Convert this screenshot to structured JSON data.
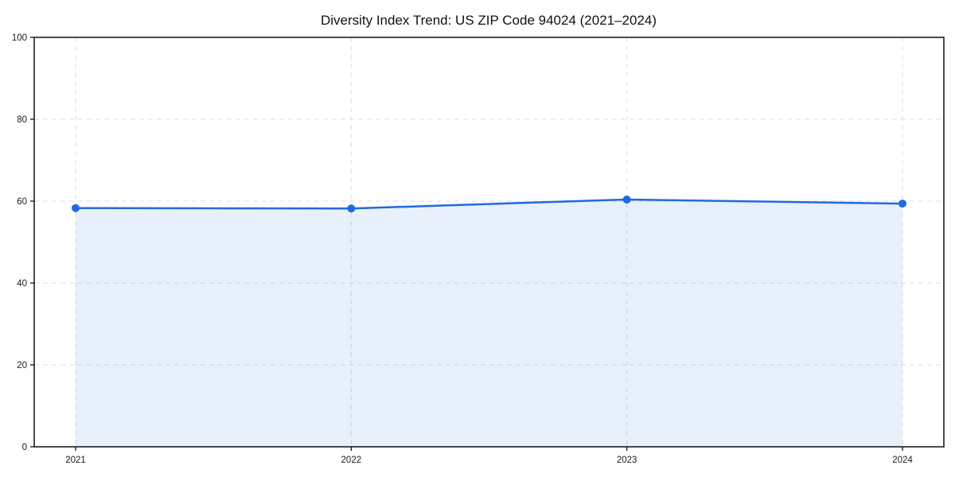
{
  "chart_data": {
    "type": "area",
    "title": "Diversity Index Trend: US ZIP Code 94024 (2021–2024)",
    "x": [
      2021,
      2022,
      2023,
      2024
    ],
    "xticklabels": [
      "2021",
      "2022",
      "2023",
      "2024"
    ],
    "series": [
      {
        "name": "Diversity Index",
        "values": [
          58.3,
          58.2,
          60.4,
          59.4
        ]
      }
    ],
    "xlabel": "",
    "ylabel": "",
    "ylim": [
      0,
      100
    ],
    "yticks": [
      0,
      20,
      40,
      60,
      80,
      100
    ],
    "grid": true,
    "grid_style": "dashed",
    "legend": false,
    "legend_position": "none",
    "colors": {
      "line": "#2169e0",
      "marker": "#2169e0",
      "fill": "rgba(33, 105, 224, 0.10)",
      "grid": "#dedede",
      "spine": "#111111",
      "tick": "#111111",
      "tick_label": "#1a1a1a",
      "title": "#111111",
      "background": "#ffffff"
    }
  }
}
